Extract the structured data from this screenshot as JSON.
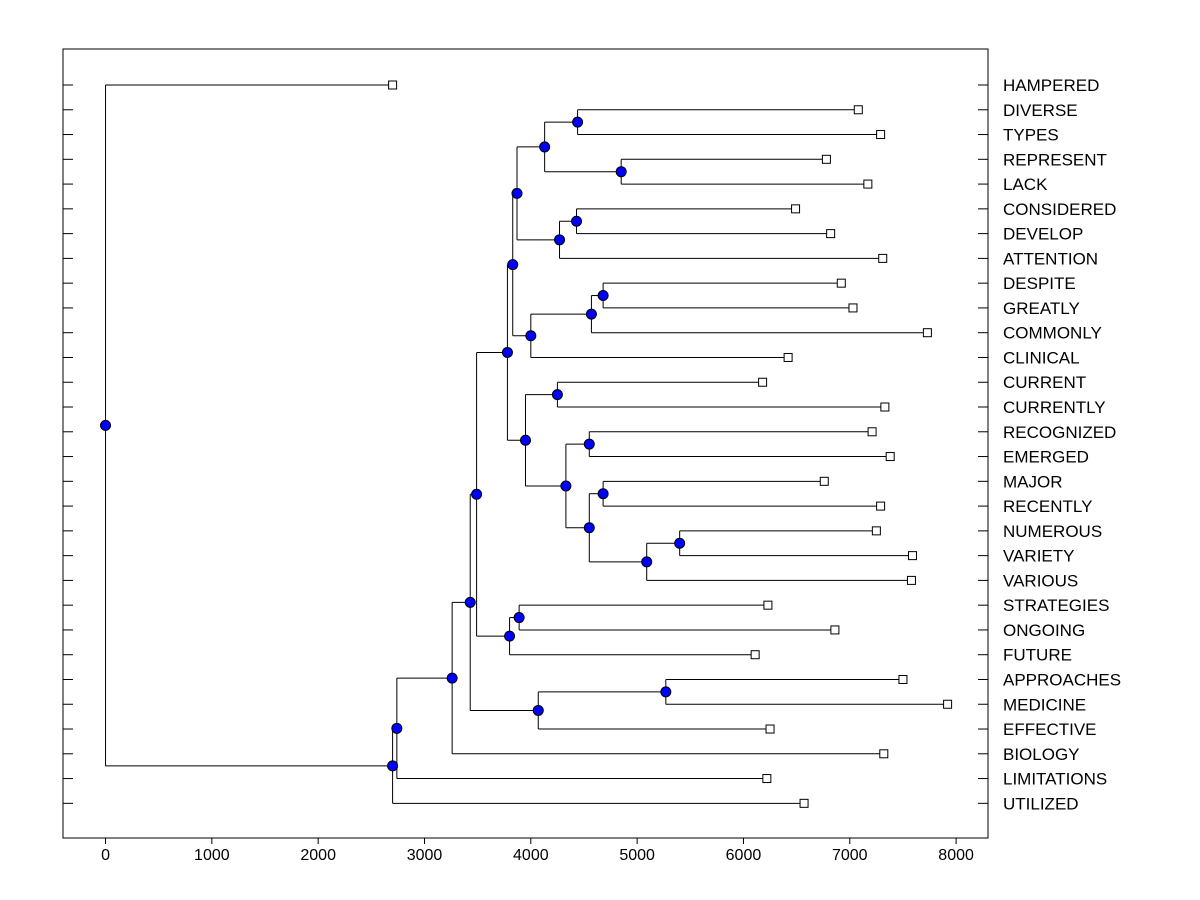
{
  "chart_data": {
    "type": "dendrogram",
    "title": "",
    "xlabel": "",
    "ylabel": "",
    "xlim": [
      -400,
      8300
    ],
    "xticks": [
      0,
      1000,
      2000,
      3000,
      4000,
      5000,
      6000,
      7000,
      8000
    ],
    "tick_labels": [
      "0",
      "1000",
      "2000",
      "3000",
      "4000",
      "5000",
      "6000",
      "7000",
      "8000"
    ],
    "colors": {
      "node": "#0000ff",
      "line": "#000000",
      "leaf_fill": "#ffffff"
    },
    "leaves": [
      {
        "label": "HAMPERED",
        "value": 2700
      },
      {
        "label": "DIVERSE",
        "value": 7080
      },
      {
        "label": "TYPES",
        "value": 7290
      },
      {
        "label": "REPRESENT",
        "value": 6780
      },
      {
        "label": "LACK",
        "value": 7170
      },
      {
        "label": "CONSIDERED",
        "value": 6490
      },
      {
        "label": "DEVELOP",
        "value": 6820
      },
      {
        "label": "ATTENTION",
        "value": 7310
      },
      {
        "label": "DESPITE",
        "value": 6920
      },
      {
        "label": "GREATLY",
        "value": 7030
      },
      {
        "label": "COMMONLY",
        "value": 7730
      },
      {
        "label": "CLINICAL",
        "value": 6420
      },
      {
        "label": "CURRENT",
        "value": 6180
      },
      {
        "label": "CURRENTLY",
        "value": 7330
      },
      {
        "label": "RECOGNIZED",
        "value": 7210
      },
      {
        "label": "EMERGED",
        "value": 7380
      },
      {
        "label": "MAJOR",
        "value": 6760
      },
      {
        "label": "RECENTLY",
        "value": 7290
      },
      {
        "label": "NUMEROUS",
        "value": 7250
      },
      {
        "label": "VARIETY",
        "value": 7590
      },
      {
        "label": "VARIOUS",
        "value": 7580
      },
      {
        "label": "STRATEGIES",
        "value": 6230
      },
      {
        "label": "ONGOING",
        "value": 6860
      },
      {
        "label": "FUTURE",
        "value": 6110
      },
      {
        "label": "APPROACHES",
        "value": 7500
      },
      {
        "label": "MEDICINE",
        "value": 7920
      },
      {
        "label": "EFFECTIVE",
        "value": 6250
      },
      {
        "label": "BIOLOGY",
        "value": 7320
      },
      {
        "label": "LIMITATIONS",
        "value": 6220
      },
      {
        "label": "UTILIZED",
        "value": 6570
      }
    ],
    "merges": [
      {
        "id": "n1",
        "height": 4440,
        "children": [
          "DIVERSE",
          "TYPES"
        ]
      },
      {
        "id": "n2",
        "height": 4850,
        "children": [
          "REPRESENT",
          "LACK"
        ]
      },
      {
        "id": "n3",
        "height": 4130,
        "children": [
          "n1",
          "n2"
        ]
      },
      {
        "id": "n4",
        "height": 4430,
        "children": [
          "CONSIDERED",
          "DEVELOP"
        ]
      },
      {
        "id": "n5",
        "height": 4270,
        "children": [
          "n4",
          "ATTENTION"
        ]
      },
      {
        "id": "n6",
        "height": 3870,
        "children": [
          "n3",
          "n5"
        ]
      },
      {
        "id": "n7",
        "height": 4680,
        "children": [
          "DESPITE",
          "GREATLY"
        ]
      },
      {
        "id": "n8",
        "height": 4570,
        "children": [
          "n7",
          "COMMONLY"
        ]
      },
      {
        "id": "n9",
        "height": 4000,
        "children": [
          "n8",
          "CLINICAL"
        ]
      },
      {
        "id": "n10",
        "height": 3830,
        "children": [
          "n6",
          "n9"
        ]
      },
      {
        "id": "n11",
        "height": 4250,
        "children": [
          "CURRENT",
          "CURRENTLY"
        ]
      },
      {
        "id": "n12",
        "height": 4550,
        "children": [
          "RECOGNIZED",
          "EMERGED"
        ]
      },
      {
        "id": "n13",
        "height": 4680,
        "children": [
          "MAJOR",
          "RECENTLY"
        ]
      },
      {
        "id": "n14",
        "height": 5400,
        "children": [
          "NUMEROUS",
          "VARIETY"
        ]
      },
      {
        "id": "n15",
        "height": 5090,
        "children": [
          "n14",
          "VARIOUS"
        ]
      },
      {
        "id": "n16",
        "height": 4550,
        "children": [
          "n13",
          "n15"
        ]
      },
      {
        "id": "n17",
        "height": 4330,
        "children": [
          "n12",
          "n16"
        ]
      },
      {
        "id": "n18",
        "height": 3950,
        "children": [
          "n11",
          "n17"
        ]
      },
      {
        "id": "n19",
        "height": 3780,
        "children": [
          "n10",
          "n18"
        ]
      },
      {
        "id": "n20",
        "height": 3890,
        "children": [
          "STRATEGIES",
          "ONGOING"
        ]
      },
      {
        "id": "n21",
        "height": 3800,
        "children": [
          "n20",
          "FUTURE"
        ]
      },
      {
        "id": "n22",
        "height": 3490,
        "children": [
          "n19",
          "n21"
        ]
      },
      {
        "id": "n23",
        "height": 5270,
        "children": [
          "APPROACHES",
          "MEDICINE"
        ]
      },
      {
        "id": "n24",
        "height": 4070,
        "children": [
          "n23",
          "EFFECTIVE"
        ]
      },
      {
        "id": "n25",
        "height": 3430,
        "children": [
          "n22",
          "n24"
        ]
      },
      {
        "id": "n26",
        "height": 3260,
        "children": [
          "n25",
          "BIOLOGY"
        ]
      },
      {
        "id": "n27",
        "height": 2740,
        "children": [
          "n26",
          "LIMITATIONS"
        ]
      },
      {
        "id": "n28",
        "height": 2700,
        "children": [
          "n27",
          "UTILIZED"
        ]
      },
      {
        "id": "n29",
        "height": 0,
        "children": [
          "HAMPERED",
          "n28"
        ]
      }
    ]
  }
}
